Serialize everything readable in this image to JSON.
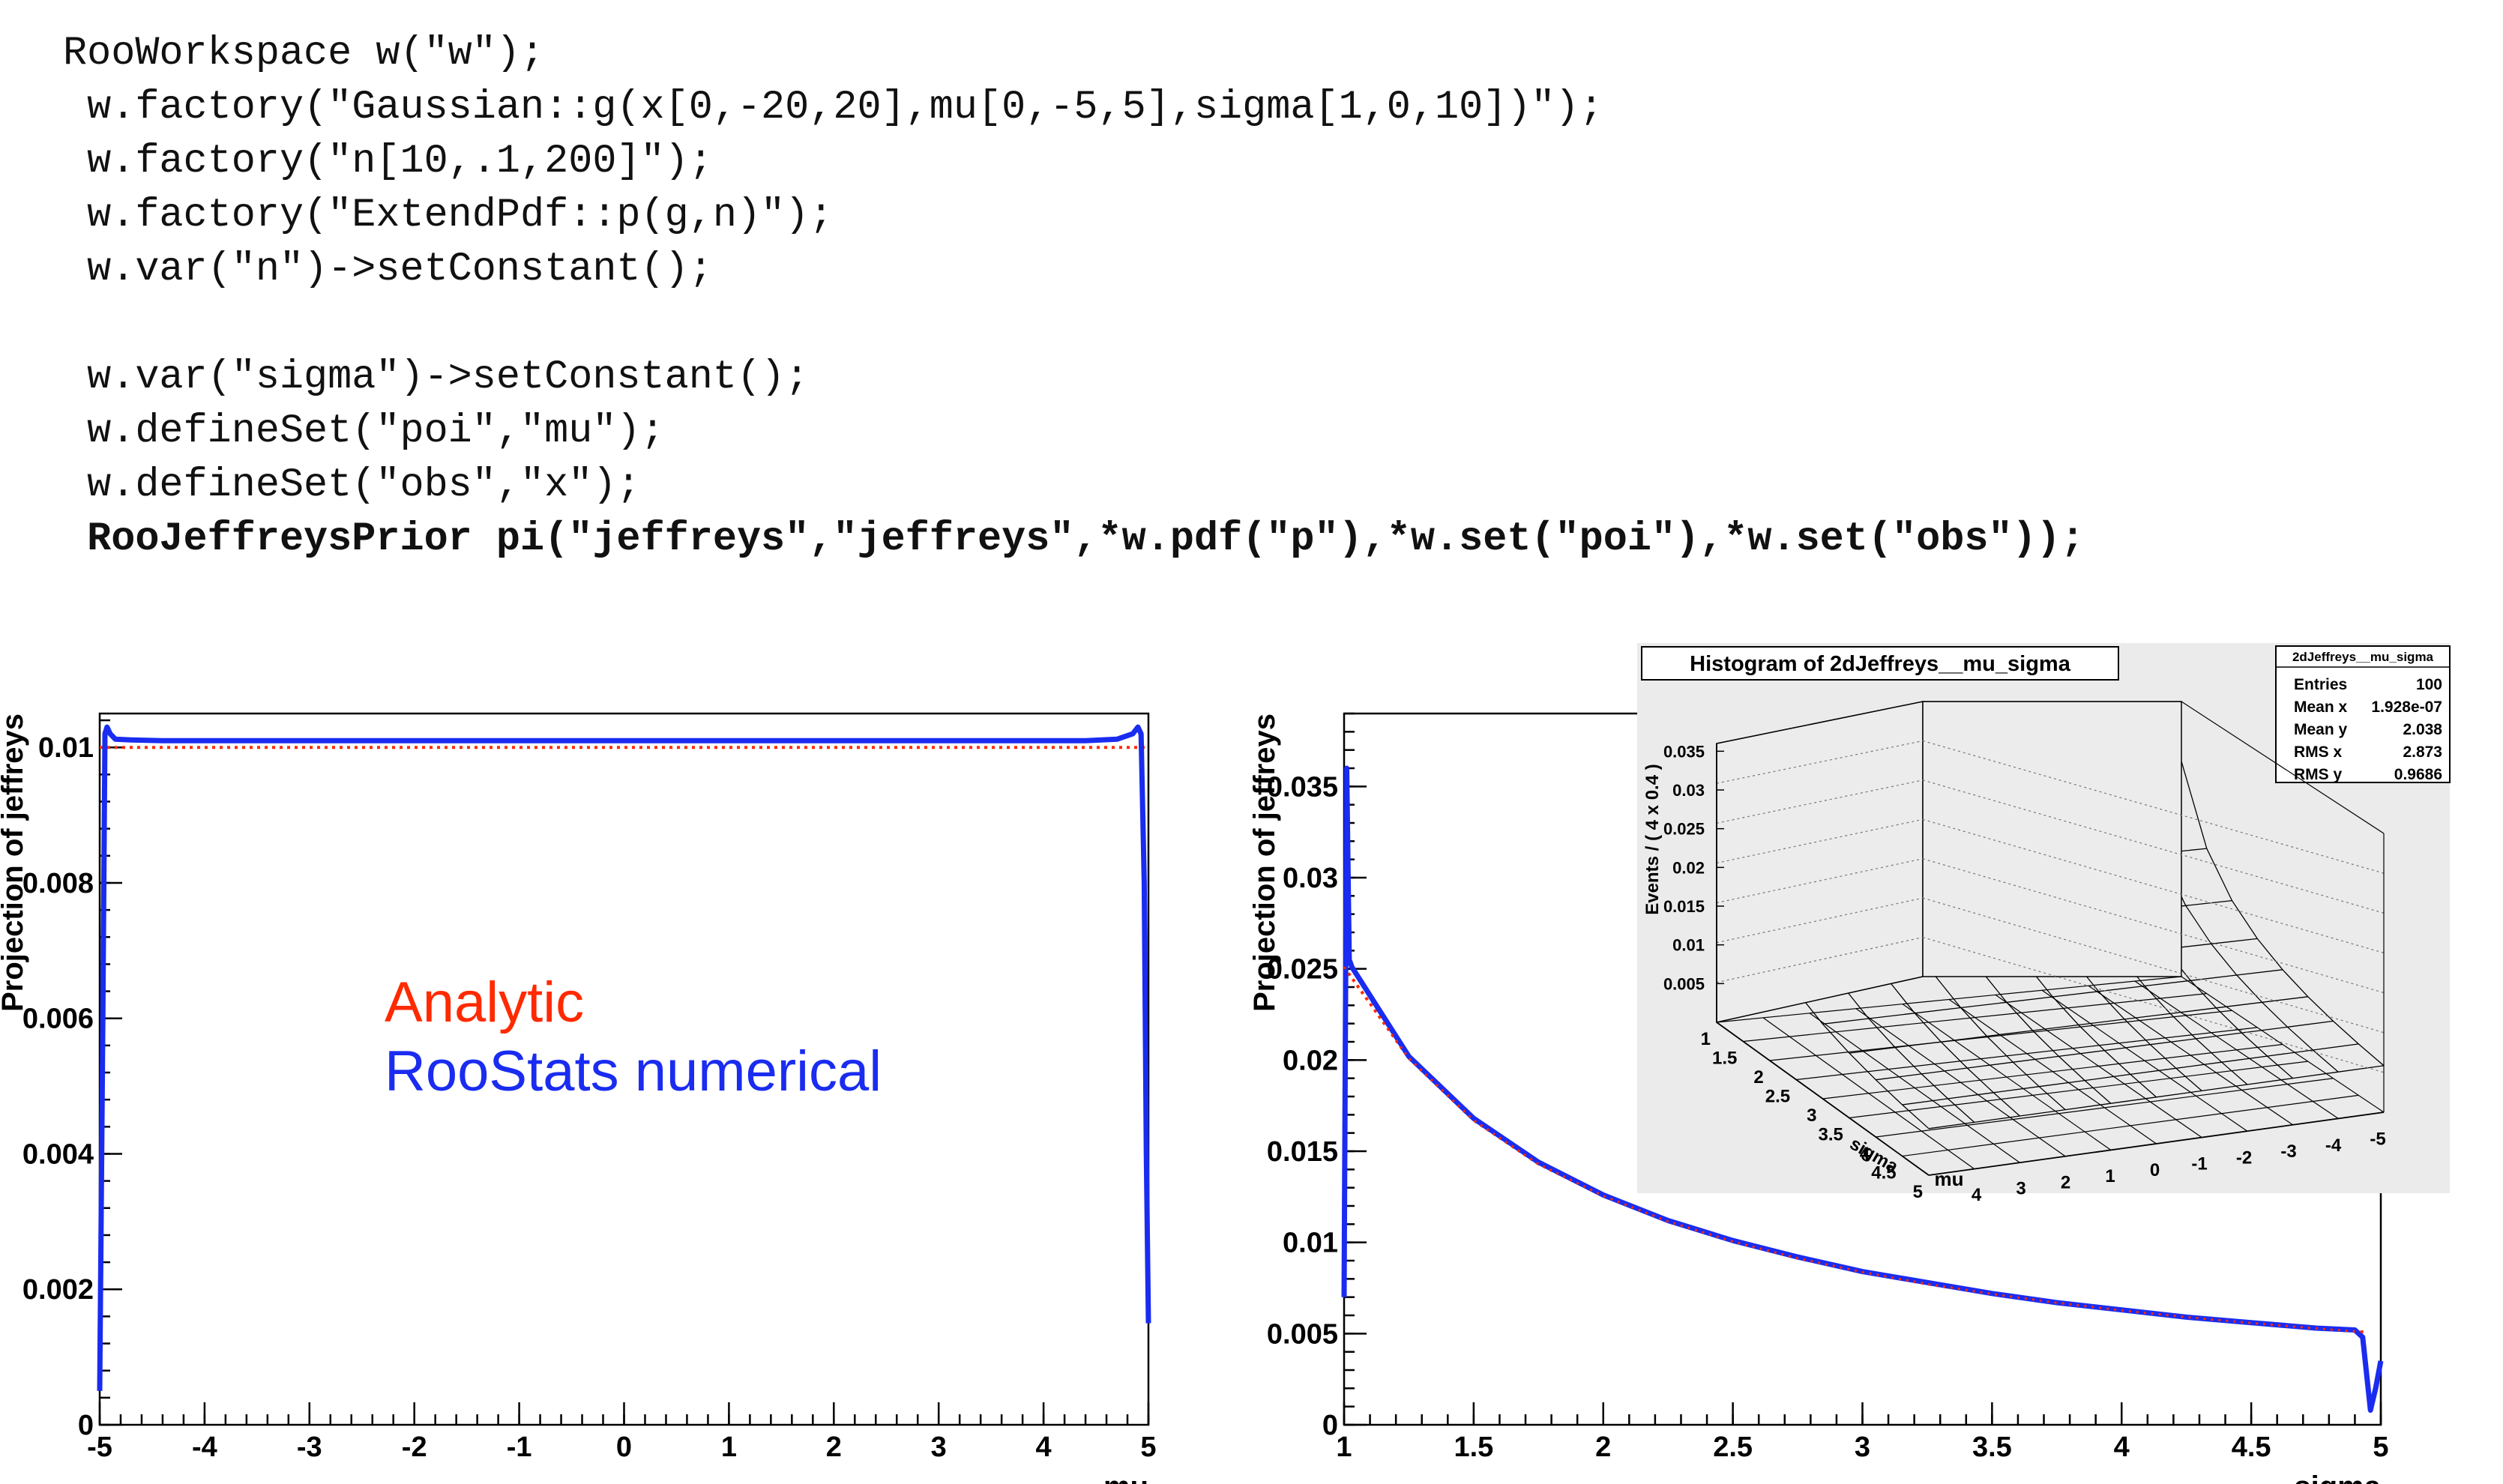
{
  "code": {
    "lines": [
      {
        "text": "RooWorkspace w(\"w\");",
        "indent": 0,
        "bold": false
      },
      {
        "text": " w.factory(\"Gaussian::g(x[0,-20,20],mu[0,-5,5],sigma[1,0,10])\");",
        "indent": 0,
        "bold": false
      },
      {
        "text": " w.factory(\"n[10,.1,200]\");",
        "indent": 0,
        "bold": false
      },
      {
        "text": " w.factory(\"ExtendPdf::p(g,n)\");",
        "indent": 0,
        "bold": false
      },
      {
        "text": " w.var(\"n\")->setConstant();",
        "indent": 0,
        "bold": false
      },
      {
        "text": "",
        "indent": 0,
        "bold": false
      },
      {
        "text": " w.var(\"sigma\")->setConstant();",
        "indent": 0,
        "bold": false
      },
      {
        "text": " w.defineSet(\"poi\",\"mu\");",
        "indent": 0,
        "bold": false
      },
      {
        "text": " w.defineSet(\"obs\",\"x\");",
        "indent": 0,
        "bold": false
      },
      {
        "text": " RooJeffreysPrior pi(\"jeffreys\",\"jeffreys\",*w.pdf(\"p\"),*w.set(\"poi\"),*w.set(\"obs\"));",
        "indent": 0,
        "bold": true
      }
    ]
  },
  "legend": {
    "analytic": "Analytic",
    "numerical": "RooStats numerical"
  },
  "colors": {
    "analytic": "#ff2a00",
    "numerical": "#1a2cf0"
  },
  "chart_data": [
    {
      "type": "line",
      "xlabel": "mu",
      "ylabel": "Projection of jeffreys",
      "xlim": [
        -5,
        5
      ],
      "ylim": [
        0,
        0.0105
      ],
      "xticks": [
        -5,
        -4,
        -3,
        -2,
        -1,
        0,
        1,
        2,
        3,
        4,
        5
      ],
      "xticklabels": [
        "-5",
        "-4",
        "-3",
        "-2",
        "-1",
        "0",
        "1",
        "2",
        "3",
        "4",
        "5"
      ],
      "yticks": [
        0,
        0.002,
        0.004,
        0.006,
        0.008,
        0.01
      ],
      "yticklabels": [
        "0",
        "0.002",
        "0.004",
        "0.006",
        "0.008",
        "0.01"
      ],
      "series": [
        {
          "name": "Analytic",
          "style": "dotted",
          "x": [
            -5,
            5
          ],
          "y": [
            0.01,
            0.01
          ]
        },
        {
          "name": "RooStats numerical",
          "style": "solid",
          "x": [
            -5.0,
            -4.97,
            -4.95,
            -4.93,
            -4.9,
            -4.85,
            -4.7,
            -4.4,
            4.4,
            4.7,
            4.85,
            4.9,
            4.93,
            4.96,
            4.98,
            5.0
          ],
          "y": [
            0.0005,
            0.006,
            0.0102,
            0.0103,
            0.0102,
            0.01012,
            0.01011,
            0.0101,
            0.0101,
            0.01012,
            0.0102,
            0.0103,
            0.0102,
            0.008,
            0.004,
            0.0015
          ]
        }
      ]
    },
    {
      "type": "line",
      "xlabel": "sigma",
      "ylabel": "Projection of jeffreys",
      "xlim": [
        1,
        5
      ],
      "ylim": [
        0,
        0.039
      ],
      "xticks": [
        1,
        1.5,
        2,
        2.5,
        3,
        3.5,
        4,
        4.5,
        5
      ],
      "xticklabels": [
        "1",
        "1.5",
        "2",
        "2.5",
        "3",
        "3.5",
        "4",
        "4.5",
        "5"
      ],
      "yticks": [
        0,
        0.005,
        0.01,
        0.015,
        0.02,
        0.025,
        0.03,
        0.035
      ],
      "yticklabels": [
        "0",
        "0.005",
        "0.01",
        "0.015",
        "0.02",
        "0.025",
        "0.03",
        "0.035"
      ],
      "series": [
        {
          "name": "Analytic",
          "style": "dotted",
          "x": [
            1.0,
            1.25,
            1.5,
            1.75,
            2.0,
            2.25,
            2.5,
            2.75,
            3.0,
            3.25,
            3.5,
            3.75,
            4.0,
            4.25,
            4.5,
            4.75,
            4.95
          ],
          "y": [
            0.0251,
            0.0201,
            0.0167,
            0.0143,
            0.01255,
            0.01115,
            0.01005,
            0.00913,
            0.00837,
            0.00772,
            0.00717,
            0.00669,
            0.00627,
            0.0059,
            0.00558,
            0.00528,
            0.00507
          ]
        },
        {
          "name": "RooStats numerical",
          "style": "solid",
          "x": [
            1.0,
            1.01,
            1.02,
            1.03,
            1.25,
            1.5,
            1.75,
            2.0,
            2.25,
            2.5,
            2.75,
            3.0,
            3.25,
            3.5,
            3.75,
            4.0,
            4.25,
            4.5,
            4.75,
            4.9,
            4.93,
            4.96,
            4.98,
            5.0
          ],
          "y": [
            0.007,
            0.036,
            0.0255,
            0.0251,
            0.0202,
            0.0168,
            0.0144,
            0.0126,
            0.0112,
            0.0101,
            0.0092,
            0.0084,
            0.0078,
            0.0072,
            0.0067,
            0.0063,
            0.0059,
            0.0056,
            0.0053,
            0.0052,
            0.0048,
            0.0008,
            0.002,
            0.0035
          ]
        }
      ]
    },
    {
      "type": "surface",
      "title": "Histogram of 2dJeffreys__mu_sigma",
      "stats": {
        "name": "2dJeffreys__mu_sigma",
        "rows": [
          {
            "label": "Entries",
            "value": "100"
          },
          {
            "label": "Mean x",
            "value": "1.928e-07"
          },
          {
            "label": "Mean y",
            "value": "2.038"
          },
          {
            "label": "RMS x",
            "value": "2.873"
          },
          {
            "label": "RMS y",
            "value": "0.9686"
          }
        ]
      },
      "zlabel": "Events / ( 4 x 0.4 )",
      "zticklabels": [
        "0.005",
        "0.01",
        "0.015",
        "0.02",
        "0.025",
        "0.03",
        "0.035"
      ],
      "sigma_label": "sigma",
      "sigma_ticklabels": [
        "1",
        "1.5",
        "2",
        "2.5",
        "3",
        "3.5",
        "4",
        "4.5",
        "5"
      ],
      "mu_label": "mu",
      "mu_ticklabels": [
        "4",
        "3",
        "2",
        "1",
        "0",
        "-1",
        "-2",
        "-3",
        "-4",
        "-5"
      ]
    }
  ]
}
